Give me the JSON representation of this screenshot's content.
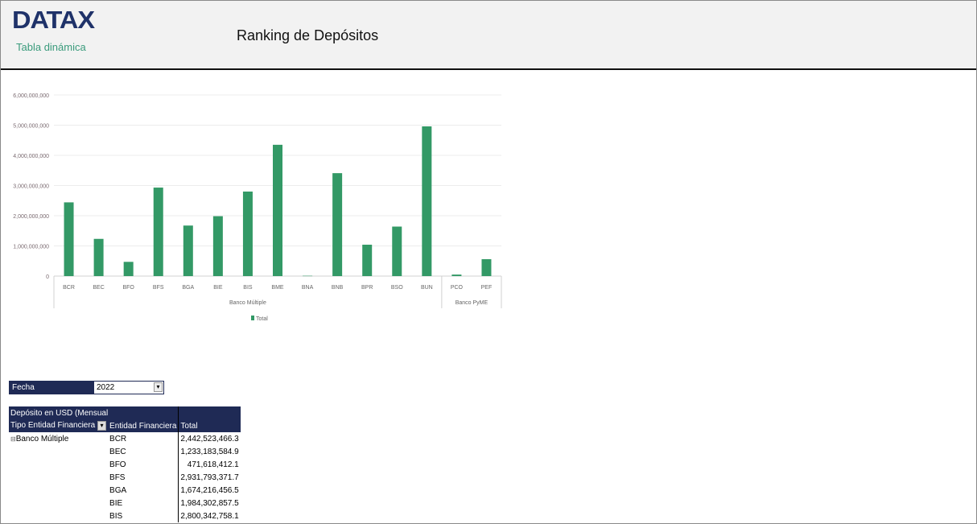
{
  "header": {
    "logo": "DATAX",
    "subtitle": "Tabla dinámica",
    "title": "Ranking de Depósitos"
  },
  "chart_data": {
    "type": "bar",
    "categories": [
      "BCR",
      "BEC",
      "BFO",
      "BFS",
      "BGA",
      "BIE",
      "BIS",
      "BME",
      "BNA",
      "BNB",
      "BPR",
      "BSO",
      "BUN",
      "PCO",
      "PEF"
    ],
    "groups": [
      {
        "name": "Banco Múltiple",
        "count": 13
      },
      {
        "name": "Banco PyME",
        "count": 2
      }
    ],
    "series": [
      {
        "name": "Total",
        "color": "#339966",
        "values": [
          2442523466.3,
          1233183584.9,
          471618412.1,
          2931793371.7,
          1674216456.5,
          1984302857.5,
          2800342758.1,
          4350000000,
          10000000,
          3410000000,
          1040000000,
          1640000000,
          4960000000,
          50000000,
          560000000
        ]
      }
    ],
    "yticks": [
      "0",
      "1,000,000,000",
      "2,000,000,000",
      "3,000,000,000",
      "4,000,000,000",
      "5,000,000,000",
      "6,000,000,000"
    ],
    "ylim": [
      0,
      6000000000
    ],
    "grid": true,
    "legend": "bottom"
  },
  "filter": {
    "label": "Fecha",
    "value": "2022"
  },
  "pivot": {
    "measure": "Depósito en USD (Mensual",
    "col1": "Tipo Entidad Financiera",
    "col2": "Entidad Financiera",
    "col3": "Total",
    "group": "Banco Múltiple",
    "rows": [
      [
        "BCR",
        "2,442,523,466.3"
      ],
      [
        "BEC",
        "1,233,183,584.9"
      ],
      [
        "BFO",
        "471,618,412.1"
      ],
      [
        "BFS",
        "2,931,793,371.7"
      ],
      [
        "BGA",
        "1,674,216,456.5"
      ],
      [
        "BIE",
        "1,984,302,857.5"
      ],
      [
        "BIS",
        "2,800,342,758.1"
      ]
    ]
  }
}
